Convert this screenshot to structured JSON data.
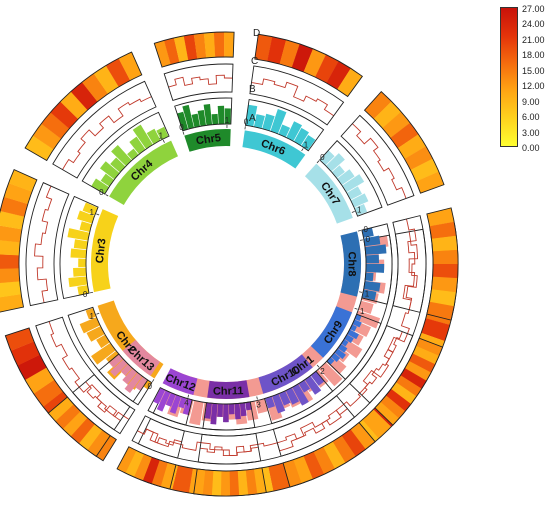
{
  "track_letters": [
    "A",
    "B",
    "C",
    "D"
  ],
  "legend": {
    "ticks": [
      "27.00",
      "24.00",
      "21.00",
      "18.00",
      "15.00",
      "12.00",
      "9.00",
      "6.00",
      "3.00",
      "0.00"
    ],
    "gradient": [
      "#ffff30",
      "#ffd21e",
      "#ffa514",
      "#f56c0e",
      "#e3330a",
      "#c8120a"
    ]
  },
  "chromosomes": [
    {
      "name": "Chr1",
      "color": "#f39a92",
      "ticks": [
        "0",
        "1",
        "2",
        "3",
        "4"
      ],
      "hist": [
        0.9,
        0.5,
        0.7,
        0.4,
        0.8,
        0.6,
        0.5,
        0.9,
        0.7,
        0.6,
        0.8,
        0.5,
        0.7,
        0.9,
        0.6,
        0.5,
        0.8,
        0.7,
        0.6,
        0.9,
        0.5,
        0.7,
        0.8,
        0.6,
        0.5,
        0.7,
        0.9,
        0.6,
        0.8,
        0.5
      ],
      "line": [
        0.5,
        0.7,
        0.4,
        0.6,
        0.3,
        0.6,
        0.5,
        0.8,
        0.4,
        0.6,
        0.7,
        0.3,
        0.5,
        0.6,
        0.4,
        0.7,
        0.5,
        0.3,
        0.6,
        0.8,
        0.5,
        0.4,
        0.6,
        0.7,
        0.5,
        0.3,
        0.6,
        0.5,
        0.7,
        0.4
      ],
      "heat": [
        6,
        12,
        9,
        18,
        8,
        15,
        21,
        10,
        7,
        14,
        19,
        9,
        24,
        11,
        8,
        16,
        12,
        20,
        9,
        13,
        17,
        8,
        22,
        10,
        15,
        11,
        18,
        9,
        14,
        12
      ]
    },
    {
      "name": "Chr2",
      "color": "#f6a81c",
      "ticks": [
        "0",
        "1"
      ],
      "hist": [
        0.3,
        0.6,
        0.4,
        0.8,
        0.5,
        0.9,
        0.4,
        0.6,
        0.7,
        0.3
      ],
      "line": [
        0.4,
        0.6,
        0.5,
        0.3,
        0.7,
        0.5,
        0.6,
        0.4,
        0.6,
        0.5
      ],
      "heat": [
        14,
        9,
        18,
        12,
        20,
        16,
        11,
        26,
        22,
        19
      ]
    },
    {
      "name": "Chr3",
      "color": "#f7d21a",
      "ticks": [
        "0",
        "1"
      ],
      "hist": [
        0.4,
        0.7,
        0.5,
        0.3,
        0.6,
        0.5,
        0.8,
        0.4,
        0.6,
        0.5
      ],
      "line": [
        0.5,
        0.3,
        0.6,
        0.4,
        0.7,
        0.5,
        0.4,
        0.6,
        0.5,
        0.7
      ],
      "heat": [
        10,
        7,
        13,
        18,
        9,
        12,
        8,
        15,
        11,
        9
      ]
    },
    {
      "name": "Chr4",
      "color": "#8fd33d",
      "ticks": [
        "0",
        "1"
      ],
      "hist": [
        0.6,
        0.4,
        0.7,
        0.5,
        0.8,
        0.3,
        0.6,
        0.9,
        0.5,
        0.4
      ],
      "line": [
        0.6,
        0.4,
        0.5,
        0.7,
        0.4,
        0.6,
        0.3,
        0.6,
        0.5,
        0.4
      ],
      "heat": [
        8,
        12,
        16,
        21,
        10,
        24,
        14,
        9,
        19,
        11
      ]
    },
    {
      "name": "Chr5",
      "color": "#1f8a2a",
      "ticks": [
        "0",
        "1"
      ],
      "hist": [
        0.7,
        0.9,
        0.5,
        0.6,
        0.8,
        0.4,
        0.7,
        0.6
      ],
      "line": [
        0.5,
        0.7,
        0.4,
        0.6,
        0.5,
        0.3,
        0.6,
        0.5
      ],
      "heat": [
        12,
        17,
        9,
        20,
        14,
        10,
        16,
        11
      ]
    },
    {
      "name": "Chr6",
      "color": "#3fc7d3",
      "ticks": [
        "0",
        "1"
      ],
      "hist": [
        0.8,
        0.5,
        0.6,
        0.9,
        0.4,
        0.7,
        0.6,
        0.5
      ],
      "line": [
        0.4,
        0.6,
        0.5,
        0.7,
        0.3,
        0.5,
        0.6,
        0.4
      ],
      "heat": [
        18,
        22,
        15,
        26,
        12,
        20,
        24,
        10
      ]
    },
    {
      "name": "Chr7",
      "color": "#a6e0e8",
      "ticks": [
        "0",
        "1"
      ],
      "hist": [
        0.5,
        0.7,
        0.4,
        0.6,
        0.8,
        0.5,
        0.6,
        0.4
      ],
      "line": [
        0.6,
        0.4,
        0.7,
        0.5,
        0.4,
        0.6,
        0.5,
        0.7
      ],
      "heat": [
        14,
        9,
        12,
        17,
        10,
        13,
        8,
        11
      ]
    },
    {
      "name": "Chr8",
      "color": "#2d6fb3",
      "ticks": [
        "0",
        "1"
      ],
      "hist": [
        0.4,
        0.6,
        0.8,
        0.5,
        0.7,
        0.3,
        0.6,
        0.5
      ],
      "line": [
        0.5,
        0.7,
        0.4,
        0.6,
        0.5,
        0.7,
        0.4,
        0.6
      ],
      "heat": [
        11,
        16,
        9,
        14,
        19,
        12,
        8,
        15
      ]
    },
    {
      "name": "Chr9",
      "color": "#3a72d6",
      "ticks": [],
      "hist": [
        0.2,
        0.3,
        0.2,
        0.4,
        0.3,
        0.2,
        0.3,
        0.4,
        0.3,
        0.2
      ],
      "line": [
        0.6,
        0.5,
        0.6,
        0.4,
        0.6,
        0.5,
        0.4,
        0.6,
        0.5,
        0.6
      ],
      "heat": [
        13,
        10,
        18,
        12,
        24,
        15,
        9,
        22,
        14,
        11
      ]
    },
    {
      "name": "Chr10",
      "color": "#6e54c8",
      "ticks": [],
      "hist": [
        0.5,
        0.7,
        0.4,
        0.8,
        0.6,
        0.5,
        0.7,
        0.4
      ],
      "line": [
        0.6,
        0.4,
        0.5,
        0.7,
        0.5,
        0.6,
        0.4,
        0.5
      ],
      "heat": [
        12,
        20,
        15,
        9,
        14,
        18,
        11,
        13
      ]
    },
    {
      "name": "Chr11",
      "color": "#7a2fa6",
      "ticks": [],
      "hist": [
        0.3,
        0.5,
        0.6,
        0.4,
        0.7,
        0.5,
        0.8,
        0.6
      ],
      "line": [
        0.5,
        0.6,
        0.4,
        0.7,
        0.5,
        0.4,
        0.6,
        0.5
      ],
      "heat": [
        10,
        14,
        9,
        16,
        12,
        8,
        13,
        11
      ]
    },
    {
      "name": "Chr12",
      "color": "#9b45d2",
      "ticks": [],
      "hist": [
        0.6,
        0.4,
        0.7,
        0.5,
        0.8,
        0.6
      ],
      "line": [
        0.4,
        0.6,
        0.5,
        0.7,
        0.4,
        0.6
      ],
      "heat": [
        11,
        15,
        24,
        13,
        9,
        12
      ]
    },
    {
      "name": "Chr13",
      "color": "#e3889f",
      "ticks": [],
      "hist": [
        0.5,
        0.8,
        0.6,
        0.4,
        0.7,
        0.5
      ],
      "line": [
        0.6,
        0.4,
        0.7,
        0.5,
        0.6,
        0.4
      ],
      "heat": [
        13,
        9,
        17,
        11,
        15,
        10
      ]
    }
  ]
}
